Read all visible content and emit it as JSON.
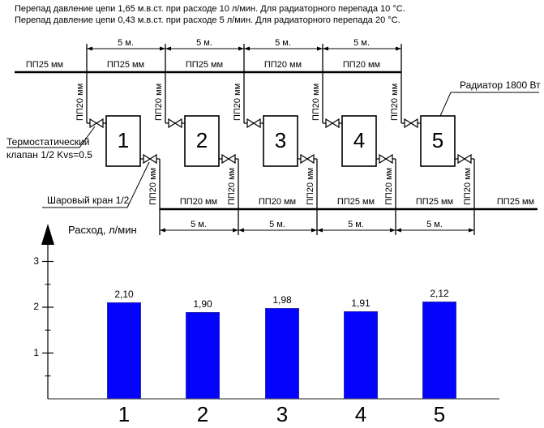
{
  "header": {
    "line1": "Перепад давление цепи 1,65 м.в.ст. при расходе 10 л/мин. Для радиаторного перепада 10 °С.",
    "line2": "Перепад давление цепи 0,43 м.в.ст. при расходе 5 л/мин. Для радиаторного перепада 20 °С."
  },
  "diagram": {
    "supply_pipe_labels": [
      "ПП25 мм",
      "ПП25 мм",
      "ПП25 мм",
      "ПП20 мм",
      "ПП20 мм"
    ],
    "return_pipe_labels": [
      "ПП20 мм",
      "ПП20 мм",
      "ПП25 мм",
      "ПП25 мм",
      "ПП25 мм"
    ],
    "riser_label": "ПП20 мм",
    "dim_label": "5 м.",
    "radiators": [
      "1",
      "2",
      "3",
      "4",
      "5"
    ],
    "annotations": {
      "thermo_line1": "Термостатический",
      "thermo_line2": "клапан 1/2 Kvs=0.5",
      "ball_valve": "Шаровый кран 1/2",
      "radiator": "Радиатор 1800 Вт"
    }
  },
  "chart_data": {
    "type": "bar",
    "title": "",
    "ylabel": "Расход, л/мин",
    "xlabel": "",
    "categories": [
      "1",
      "2",
      "3",
      "4",
      "5"
    ],
    "values": [
      2.1,
      1.9,
      1.98,
      1.91,
      2.12
    ],
    "value_labels": [
      "2,10",
      "1,90",
      "1,98",
      "1,91",
      "2,12"
    ],
    "ytick_labels": [
      "3",
      "2",
      "1"
    ],
    "yticks": [
      3,
      2,
      1
    ],
    "ylim": [
      0,
      3.4
    ],
    "grid": false,
    "legend": false,
    "bar_color": "#0404fc"
  }
}
